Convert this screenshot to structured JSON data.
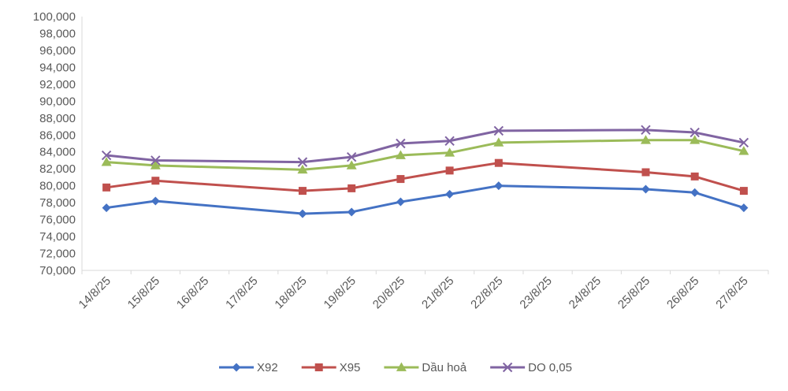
{
  "chart_data": {
    "type": "line",
    "title": "",
    "xlabel": "",
    "ylabel": "",
    "ylim": [
      70000,
      100000
    ],
    "y_ticks": [
      "70,000",
      "72,000",
      "74,000",
      "76,000",
      "78,000",
      "80,000",
      "82,000",
      "84,000",
      "86,000",
      "88,000",
      "90,000",
      "92,000",
      "94,000",
      "96,000",
      "98,000",
      "100,000"
    ],
    "categories": [
      "14/8/25",
      "15/8/25",
      "16/8/25",
      "17/8/25",
      "18/8/25",
      "19/8/25",
      "20/8/25",
      "21/8/25",
      "22/8/25",
      "23/8/25",
      "24/8/25",
      "25/8/25",
      "26/8/25",
      "27/8/25"
    ],
    "grid": false,
    "legend_position": "bottom",
    "series": [
      {
        "name": "X92",
        "color": "#4472C4",
        "marker": "diamond",
        "values": [
          77400,
          78200,
          null,
          null,
          76700,
          76900,
          78100,
          79000,
          80000,
          null,
          null,
          79600,
          79200,
          77400
        ]
      },
      {
        "name": "X95",
        "color": "#C0504D",
        "marker": "square",
        "values": [
          79800,
          80600,
          null,
          null,
          79400,
          79700,
          80800,
          81800,
          82700,
          null,
          null,
          81600,
          81100,
          79400
        ]
      },
      {
        "name": "Dầu hoả",
        "color": "#9BBB59",
        "marker": "triangle",
        "values": [
          82800,
          82400,
          null,
          null,
          81900,
          82400,
          83600,
          83900,
          85100,
          null,
          null,
          85400,
          85400,
          84100
        ]
      },
      {
        "name": "DO 0,05",
        "color": "#8064A2",
        "marker": "x",
        "values": [
          83600,
          83000,
          null,
          null,
          82800,
          83400,
          85000,
          85300,
          86500,
          null,
          null,
          86600,
          86300,
          85100
        ]
      }
    ]
  }
}
